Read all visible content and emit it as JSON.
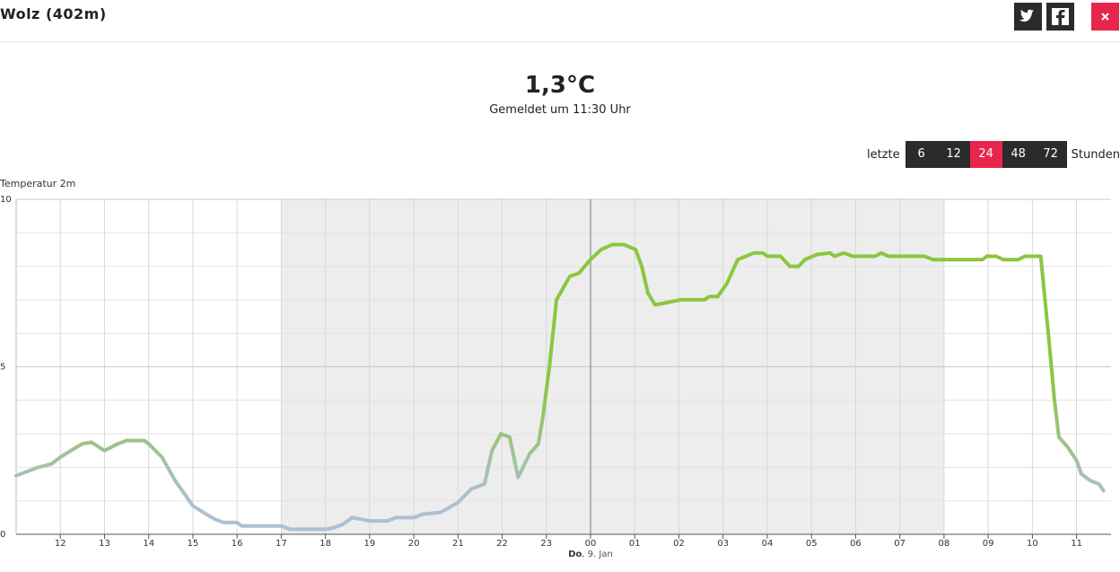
{
  "header": {
    "title": "Wolz (402m)"
  },
  "current": {
    "temperature": "1,3°C",
    "reported": "Gemeldet um 11:30 Uhr"
  },
  "range_selector": {
    "prefix": "letzte",
    "options": [
      "6",
      "12",
      "24",
      "48",
      "72"
    ],
    "active": 2,
    "suffix": "Stunden"
  },
  "chart_data": {
    "type": "line",
    "y_label": "Temperatur 2m",
    "x": [
      11.0,
      11.5,
      11.8,
      12.0,
      12.3,
      12.5,
      12.7,
      13.0,
      13.3,
      13.5,
      13.9,
      14.0,
      14.3,
      14.6,
      15.0,
      15.3,
      15.5,
      15.7,
      16.0,
      16.1,
      17.0,
      17.2,
      18.0,
      18.2,
      18.4,
      18.6,
      18.8,
      19.0,
      19.4,
      19.6,
      20.0,
      20.2,
      20.6,
      20.8,
      21.0,
      21.3,
      21.6,
      21.77,
      21.97,
      22.17,
      22.36,
      22.62,
      22.82,
      22.92,
      23.07,
      23.23,
      23.53,
      23.74,
      24.0,
      24.24,
      24.49,
      24.75,
      25.02,
      25.16,
      25.3,
      25.46,
      25.66,
      26.03,
      26.58,
      26.68,
      26.88,
      27.09,
      27.33,
      27.7,
      27.9,
      28.0,
      28.3,
      28.51,
      28.71,
      28.85,
      29.12,
      29.42,
      29.52,
      29.73,
      29.93,
      30.44,
      30.58,
      30.74,
      31.55,
      31.76,
      32.87,
      32.97,
      33.18,
      33.34,
      33.68,
      33.83,
      34.19,
      34.36,
      34.5,
      34.6,
      34.8,
      35.0,
      35.11,
      35.31,
      35.51,
      35.61
    ],
    "values": [
      1.75,
      2.0,
      2.1,
      2.3,
      2.55,
      2.7,
      2.75,
      2.5,
      2.7,
      2.8,
      2.8,
      2.7,
      2.3,
      1.6,
      0.85,
      0.6,
      0.45,
      0.35,
      0.35,
      0.25,
      0.25,
      0.15,
      0.15,
      0.2,
      0.3,
      0.5,
      0.45,
      0.4,
      0.4,
      0.5,
      0.5,
      0.6,
      0.65,
      0.8,
      0.95,
      1.35,
      1.5,
      2.5,
      3.0,
      2.9,
      1.7,
      2.4,
      2.7,
      3.5,
      5.0,
      7.0,
      7.7,
      7.8,
      8.2,
      8.5,
      8.65,
      8.65,
      8.5,
      8.0,
      7.2,
      6.85,
      6.9,
      7.0,
      7.0,
      7.1,
      7.1,
      7.5,
      8.2,
      8.4,
      8.4,
      8.3,
      8.3,
      8.0,
      8.0,
      8.2,
      8.35,
      8.4,
      8.3,
      8.4,
      8.3,
      8.3,
      8.4,
      8.3,
      8.3,
      8.2,
      8.2,
      8.3,
      8.3,
      8.2,
      8.2,
      8.3,
      8.3,
      6.0,
      4.0,
      2.9,
      2.6,
      2.2,
      1.8,
      1.6,
      1.5,
      1.3
    ],
    "colors": [
      "#aebfd2",
      "#8cc63f"
    ],
    "xlim": [
      11,
      35.78
    ],
    "xticks": [
      12,
      13,
      14,
      15,
      16,
      17,
      18,
      19,
      20,
      21,
      22,
      23,
      {
        "value": 24,
        "label": "00"
      },
      {
        "value": 25,
        "label": "01"
      },
      {
        "value": 26,
        "label": "02"
      },
      {
        "value": 27,
        "label": "03"
      },
      {
        "value": 28,
        "label": "04"
      },
      {
        "value": 29,
        "label": "05"
      },
      {
        "value": 30,
        "label": "06"
      },
      {
        "value": 31,
        "label": "07"
      },
      {
        "value": 32,
        "label": "08"
      },
      {
        "value": 33,
        "label": "09"
      },
      {
        "value": 34,
        "label": "10"
      },
      {
        "value": 35,
        "label": "11"
      }
    ],
    "ylim": [
      0,
      10
    ],
    "yticks": [
      0,
      5,
      10
    ],
    "yminorticks": [
      1,
      2,
      3,
      4,
      6,
      7,
      8,
      9
    ],
    "night_band": {
      "from": 17,
      "to": 32
    },
    "date_label": {
      "value": 24,
      "parts": [
        "Do",
        ", 9. Jan"
      ]
    },
    "grid": true
  }
}
